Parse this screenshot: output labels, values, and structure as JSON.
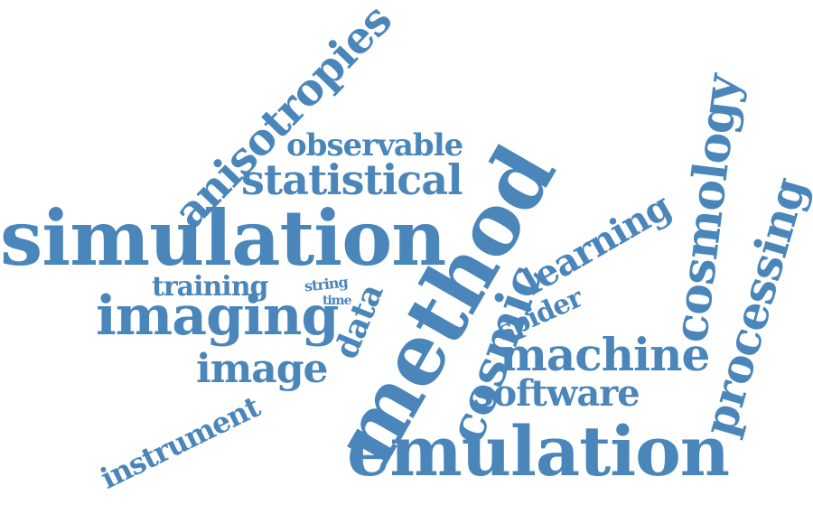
{
  "colors": {
    "text": "#4a86ba",
    "background": "#ffffff"
  },
  "words": [
    {
      "id": "simulation",
      "text": "simulation"
    },
    {
      "id": "emulation",
      "text": "emulation"
    },
    {
      "id": "method",
      "text": "method"
    },
    {
      "id": "imaging",
      "text": "imaging"
    },
    {
      "id": "anisotropies",
      "text": "anisotropies"
    },
    {
      "id": "statistical",
      "text": "statistical"
    },
    {
      "id": "observable",
      "text": "observable"
    },
    {
      "id": "cosmology",
      "text": "cosmology"
    },
    {
      "id": "processing",
      "text": "processing"
    },
    {
      "id": "machine",
      "text": "machine"
    },
    {
      "id": "software",
      "text": "software"
    },
    {
      "id": "cosmic",
      "text": "cosmic"
    },
    {
      "id": "learning",
      "text": "learning"
    },
    {
      "id": "image",
      "text": "image"
    },
    {
      "id": "instrument",
      "text": "instrument"
    },
    {
      "id": "training",
      "text": "training"
    },
    {
      "id": "spider",
      "text": "spider"
    },
    {
      "id": "data",
      "text": "data"
    },
    {
      "id": "string",
      "text": "string"
    },
    {
      "id": "time",
      "text": "time"
    }
  ]
}
